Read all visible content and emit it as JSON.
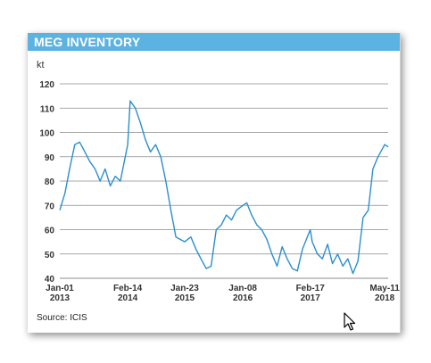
{
  "panel": {
    "title": "MEG INVENTORY",
    "source": "Source: ICIS"
  },
  "colors": {
    "header": "#5cb3e2",
    "line": "#2b8fcd",
    "grid": "#8c8c8c"
  },
  "chart_data": {
    "type": "line",
    "title": "MEG INVENTORY",
    "ylabel": "kt",
    "ylim": [
      40,
      120
    ],
    "yticks": [
      40,
      50,
      60,
      70,
      80,
      90,
      100,
      110,
      120
    ],
    "grid": "horizontal",
    "xticks": [
      {
        "line1": "Jan-01",
        "line2": "2013"
      },
      {
        "line1": "Feb-14",
        "line2": "2014"
      },
      {
        "line1": "Jan-23",
        "line2": "2015"
      },
      {
        "line1": "Jan-08",
        "line2": "2016"
      },
      {
        "line1": "Feb-17",
        "line2": "2017"
      },
      {
        "line1": "May-11",
        "line2": "2018"
      }
    ],
    "series": [
      {
        "color": "#2b8fcd",
        "x": [
          "2013-01-01",
          "2013-02-01",
          "2013-03-01",
          "2013-04-01",
          "2013-05-01",
          "2013-06-01",
          "2013-07-01",
          "2013-08-01",
          "2013-09-01",
          "2013-10-01",
          "2013-11-01",
          "2013-12-01",
          "2014-01-01",
          "2014-02-14",
          "2014-03-01",
          "2014-04-01",
          "2014-05-01",
          "2014-06-01",
          "2014-07-01",
          "2014-08-01",
          "2014-09-01",
          "2014-10-01",
          "2014-11-01",
          "2014-12-01",
          "2015-01-23",
          "2015-03-01",
          "2015-04-01",
          "2015-05-01",
          "2015-06-01",
          "2015-07-01",
          "2015-08-01",
          "2015-09-01",
          "2015-10-01",
          "2015-11-01",
          "2015-12-01",
          "2016-01-08",
          "2016-02-01",
          "2016-03-01",
          "2016-04-01",
          "2016-05-01",
          "2016-06-01",
          "2016-07-01",
          "2016-08-01",
          "2016-09-01",
          "2016-10-01",
          "2016-11-01",
          "2016-12-01",
          "2017-01-01",
          "2017-02-17",
          "2017-03-01",
          "2017-04-01",
          "2017-05-01",
          "2017-06-01",
          "2017-07-01",
          "2017-08-01",
          "2017-09-01",
          "2017-10-01",
          "2017-11-01",
          "2017-12-01",
          "2018-01-01",
          "2018-02-01",
          "2018-03-01",
          "2018-04-01",
          "2018-05-11",
          "2018-06-01"
        ],
        "y": [
          68,
          75,
          85,
          95,
          96,
          92,
          88,
          85,
          80,
          85,
          78,
          82,
          80,
          95,
          113,
          110,
          104,
          97,
          92,
          95,
          90,
          80,
          68,
          57,
          55,
          57,
          52,
          48,
          44,
          45,
          60,
          62,
          66,
          64,
          68,
          70,
          71,
          66,
          62,
          60,
          56,
          50,
          45,
          53,
          48,
          44,
          43,
          52,
          60,
          55,
          50,
          48,
          54,
          46,
          50,
          45,
          48,
          42,
          47,
          65,
          68,
          85,
          90,
          95,
          94
        ]
      }
    ]
  }
}
